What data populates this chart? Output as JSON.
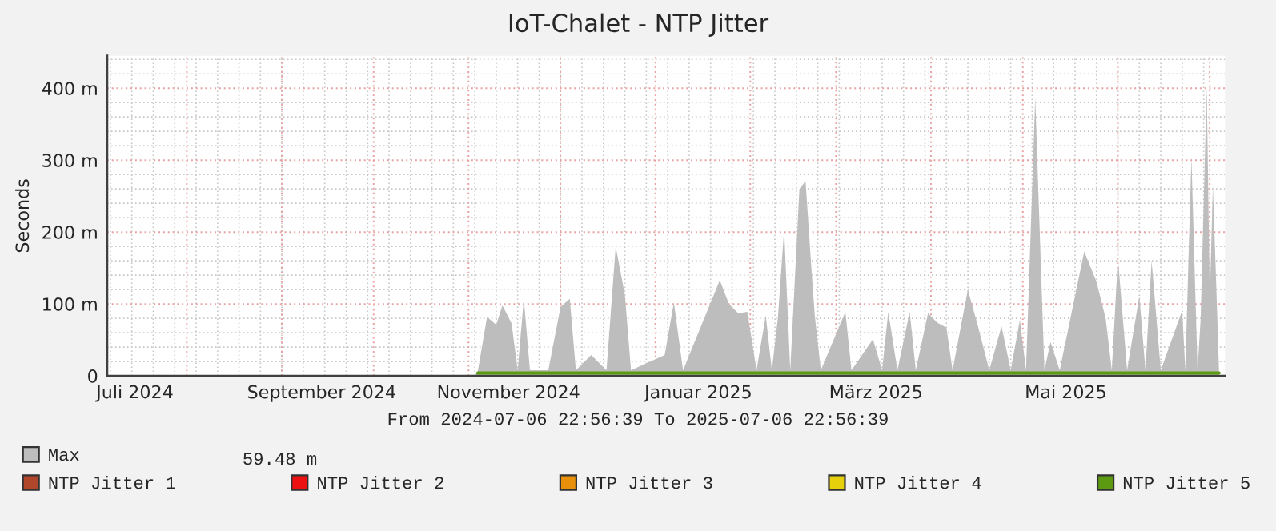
{
  "chart_data": {
    "type": "area",
    "title": "IoT-Chalet - NTP Jitter",
    "ylabel": "Seconds",
    "annotations": [
      "From 2024-07-06 22:56:39 To 2025-07-06 22:56:39",
      "59.48 m"
    ],
    "xlim": [
      "2024-07-06T22:56",
      "2025-07-06T22:56"
    ],
    "xticks": [
      {
        "value": "2024-07-16",
        "label": "Juli 2024"
      },
      {
        "value": "2024-09-15",
        "label": "September 2024"
      },
      {
        "value": "2024-11-15",
        "label": "November 2024"
      },
      {
        "value": "2025-01-16",
        "label": "Januar 2025"
      },
      {
        "value": "2025-03-15",
        "label": "März 2025"
      },
      {
        "value": "2025-05-16",
        "label": "Mai 2025"
      }
    ],
    "ylim": [
      0,
      445
    ],
    "yticks": [
      0,
      {
        "value": 100,
        "label": "100 m"
      },
      {
        "value": 200,
        "label": "200 m"
      },
      {
        "value": 300,
        "label": "300 m"
      },
      {
        "value": 400,
        "label": "400 m"
      }
    ],
    "grid": true,
    "legend": "bottom",
    "series": [
      {
        "name": "Max",
        "color": "#bdbdbd",
        "x": [
          "2024-07-07",
          "2024-11-04",
          "2024-11-05",
          "2024-11-08",
          "2024-11-11",
          "2024-11-13",
          "2024-11-14",
          "2024-11-16",
          "2024-11-18",
          "2024-11-20",
          "2024-11-22",
          "2024-11-28",
          "2024-12-02",
          "2024-12-05",
          "2024-12-07",
          "2024-12-12",
          "2024-12-17",
          "2024-12-20",
          "2024-12-23",
          "2024-12-25",
          "2025-01-05",
          "2025-01-08",
          "2025-01-11",
          "2025-01-23",
          "2025-01-26",
          "2025-01-29",
          "2025-02-01",
          "2025-02-04",
          "2025-02-07",
          "2025-02-09",
          "2025-02-11",
          "2025-02-13",
          "2025-02-15",
          "2025-02-18",
          "2025-02-20",
          "2025-02-22",
          "2025-02-23",
          "2025-02-25",
          "2025-03-05",
          "2025-03-07",
          "2025-03-14",
          "2025-03-17",
          "2025-03-19",
          "2025-03-22",
          "2025-03-26",
          "2025-03-28",
          "2025-04-01",
          "2025-04-04",
          "2025-04-07",
          "2025-04-09",
          "2025-04-14",
          "2025-04-17",
          "2025-04-21",
          "2025-04-25",
          "2025-04-28",
          "2025-05-01",
          "2025-05-03",
          "2025-05-06",
          "2025-05-09",
          "2025-05-11",
          "2025-05-14",
          "2025-05-22",
          "2025-05-26",
          "2025-05-29",
          "2025-05-31",
          "2025-06-02",
          "2025-06-05",
          "2025-06-09",
          "2025-06-11",
          "2025-06-13",
          "2025-06-16",
          "2025-06-23",
          "2025-06-24",
          "2025-06-26",
          "2025-06-28",
          "2025-06-29",
          "2025-07-01",
          "2025-07-02",
          "2025-07-03",
          "2025-07-04",
          "2025-07-05"
        ],
        "values": [
          0,
          0,
          7,
          82,
          71,
          98,
          90,
          73,
          8,
          107,
          8,
          8,
          96,
          107,
          8,
          29,
          8,
          180,
          113,
          8,
          29,
          102,
          8,
          133,
          100,
          87,
          89,
          8,
          84,
          8,
          82,
          204,
          8,
          260,
          271,
          144,
          84,
          8,
          89,
          8,
          51,
          8,
          89,
          8,
          89,
          8,
          87,
          74,
          67,
          8,
          120,
          74,
          8,
          69,
          8,
          78,
          8,
          387,
          8,
          47,
          8,
          173,
          131,
          80,
          8,
          164,
          8,
          111,
          8,
          160,
          8,
          91,
          8,
          304,
          8,
          78,
          402,
          107,
          264,
          140,
          8
        ]
      },
      {
        "name": "NTP Jitter 1",
        "type": "line",
        "color": "#b0462a"
      },
      {
        "name": "NTP Jitter 2",
        "type": "line",
        "color": "#ee1111"
      },
      {
        "name": "NTP Jitter 3",
        "type": "line",
        "color": "#e8900a"
      },
      {
        "name": "NTP Jitter 4",
        "type": "line",
        "color": "#e6d00c"
      },
      {
        "name": "NTP Jitter 5",
        "type": "line",
        "color": "#5c9a12",
        "x": [
          "2024-11-05",
          "2025-02-20",
          "2025-07-05"
        ],
        "values": [
          4,
          4,
          4
        ]
      }
    ]
  }
}
